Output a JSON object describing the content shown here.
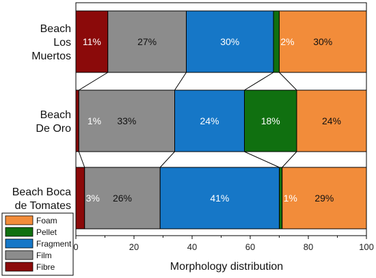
{
  "chart_data": {
    "type": "bar",
    "orientation": "horizontal",
    "stacked": true,
    "categories": [
      "Beach Los Muertos",
      "Beach De Oro",
      "Beach Boca de Tomates"
    ],
    "category_lines": [
      [
        "Beach",
        "Los",
        "Muertos"
      ],
      [
        "Beach",
        "De Oro"
      ],
      [
        "Beach Boca",
        "de Tomates"
      ]
    ],
    "series": [
      {
        "name": "Fibre",
        "color": "#8b0a0a",
        "values": [
          11,
          1,
          3
        ],
        "labels": [
          "11%",
          "",
          "3%"
        ],
        "label_color": "#ffffff"
      },
      {
        "name": "Film",
        "color": "#8c8c8c",
        "values": [
          27,
          33,
          26
        ],
        "labels": [
          "27%",
          "33%",
          "26%"
        ],
        "label_color": "#111111"
      },
      {
        "name": "Fragment",
        "color": "#1677c7",
        "values": [
          30,
          24,
          41
        ],
        "labels": [
          "30%",
          "24%",
          "41%"
        ],
        "label_color": "#ffffff"
      },
      {
        "name": "Pellet",
        "color": "#107010",
        "values": [
          2,
          18,
          1
        ],
        "labels": [
          "2%",
          "18%",
          "1%"
        ],
        "label_color": "#ffffff"
      },
      {
        "name": "Foam",
        "color": "#f28c3a",
        "values": [
          30,
          24,
          29
        ],
        "labels": [
          "30%",
          "24%",
          "29%"
        ],
        "label_color": "#111111"
      }
    ],
    "extra_labels": [
      {
        "category_index": 1,
        "text": "1%",
        "position_value": 4,
        "color": "#ffffff"
      }
    ],
    "legend_order": [
      "Foam",
      "Pellet",
      "Fragment",
      "Film",
      "Fibre"
    ],
    "legend_position": "bottom-left",
    "xlabel": "Morphology distribution",
    "xlim": [
      0,
      100
    ],
    "xticks": [
      0,
      20,
      40,
      60,
      80,
      100
    ],
    "grid": false
  }
}
